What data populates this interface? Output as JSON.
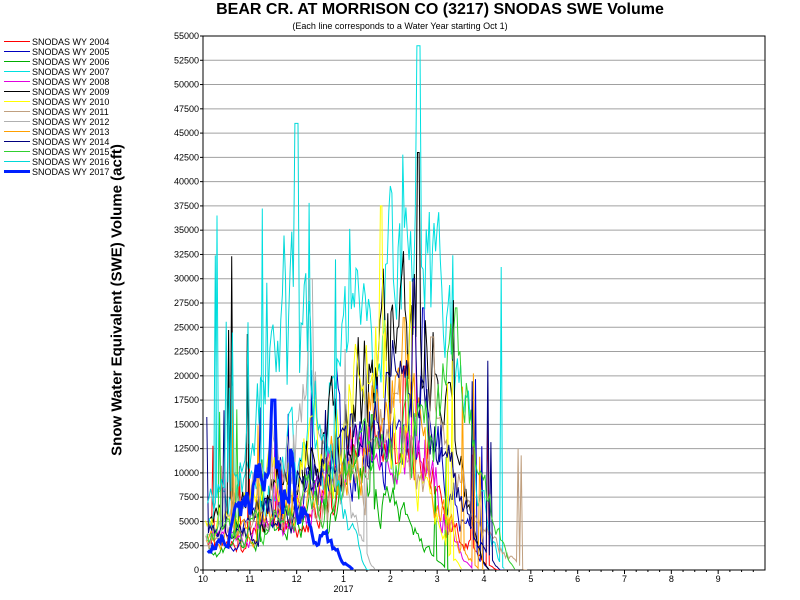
{
  "chart_data": {
    "type": "line",
    "title": "BEAR CR. AT MORRISON CO (3217) SNODAS SWE Volume",
    "subtitle": "(Each line corresponds to a Water Year starting Oct 1)",
    "ylabel": "Snow Water Equivalent (SWE) Volume (acft)",
    "xlabel": "",
    "x_ticks": [
      "10",
      "11",
      "12",
      "1",
      "2",
      "3",
      "4",
      "5",
      "6",
      "7",
      "8",
      "9"
    ],
    "x_year_label": "2017",
    "ylim": [
      0,
      55000
    ],
    "y_ticks": [
      "0",
      "2500",
      "5000",
      "7500",
      "10000",
      "12500",
      "15000",
      "17500",
      "20000",
      "22500",
      "25000",
      "27500",
      "30000",
      "32500",
      "35000",
      "37500",
      "40000",
      "42500",
      "45000",
      "47500",
      "50000",
      "52500",
      "55000"
    ],
    "grid": "horizontal",
    "legend_position": "left",
    "series": [
      {
        "name": "SNODAS WY 2004",
        "color": "#ff0000",
        "peak_month": 4.3,
        "peak": 21000
      },
      {
        "name": "SNODAS WY 2005",
        "color": "#0000c0",
        "peak_month": 4.7,
        "peak": 27000
      },
      {
        "name": "SNODAS WY 2006",
        "color": "#00b000",
        "peak_month": 3.6,
        "peak": 16000
      },
      {
        "name": "SNODAS WY 2007",
        "color": "#00e0e0",
        "peak_month": 4.6,
        "peak": 54000
      },
      {
        "name": "SNODAS WY 2008",
        "color": "#e000e0",
        "peak_month": 4.5,
        "peak": 25000
      },
      {
        "name": "SNODAS WY 2009",
        "color": "#000000",
        "peak_month": 4.6,
        "peak": 43000
      },
      {
        "name": "SNODAS WY 2010",
        "color": "#ffff00",
        "peak_month": 3.8,
        "peak": 37500
      },
      {
        "name": "SNODAS WY 2011",
        "color": "#c0a080",
        "peak_month": 4.9,
        "peak": 24000
      },
      {
        "name": "SNODAS WY 2012",
        "color": "#b0b0b0",
        "peak_month": 2.3,
        "peak": 30000
      },
      {
        "name": "SNODAS WY 2013",
        "color": "#ffa000",
        "peak_month": 4.3,
        "peak": 26000
      },
      {
        "name": "SNODAS WY 2014",
        "color": "#000080",
        "peak_month": 4.5,
        "peak": 30000
      },
      {
        "name": "SNODAS WY 2015",
        "color": "#30d030",
        "peak_month": 5.4,
        "peak": 27000
      },
      {
        "name": "SNODAS WY 2016",
        "color": "#00d8d8",
        "peak_month": 2.0,
        "peak": 46000
      },
      {
        "name": "SNODAS WY 2017",
        "color": "#0020ff",
        "peak_month": 1.5,
        "peak": 17500,
        "bold": true
      }
    ]
  }
}
